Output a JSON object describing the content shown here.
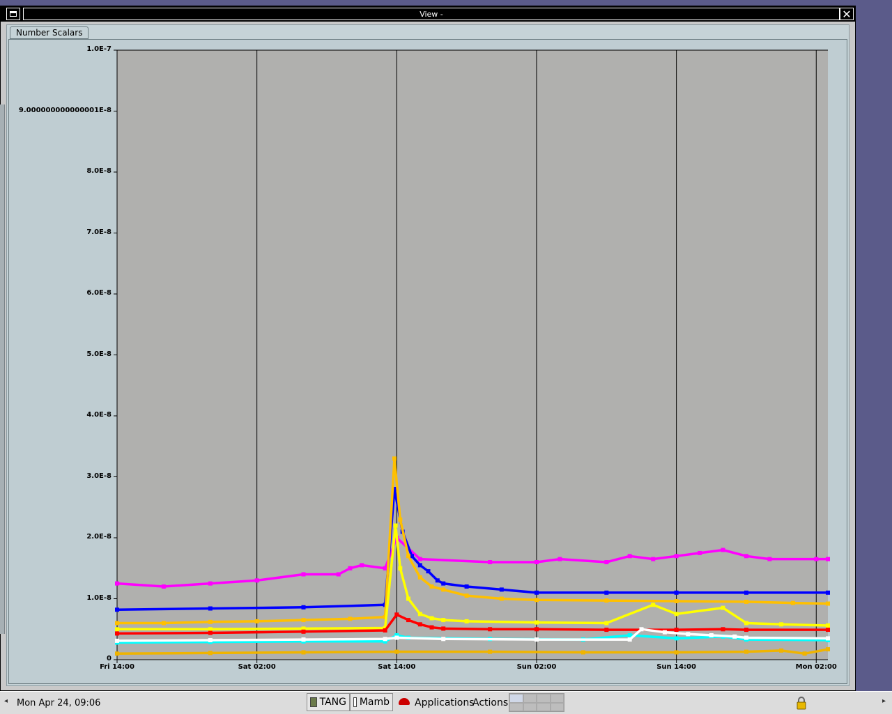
{
  "window": {
    "title": "View -",
    "tab_label": "Number Scalars"
  },
  "chart_data": {
    "type": "line",
    "ylim": [
      0,
      1e-07
    ],
    "yticks": [
      "1.0E-7",
      "9.000000000000001E-8",
      "8.0E-8",
      "7.0E-8",
      "6.0E-8",
      "5.0E-8",
      "4.0E-8",
      "3.0E-8",
      "2.0E-8",
      "1.0E-8",
      "0"
    ],
    "ytick_values": [
      1e-07,
      9e-08,
      8e-08,
      7e-08,
      6e-08,
      5e-08,
      4e-08,
      3e-08,
      2e-08,
      1e-08,
      0
    ],
    "xlim": [
      8.0,
      69.0
    ],
    "x_unit": "hours since Fri 06:00",
    "xticks": [
      "Fri 14:00",
      "Sat 02:00",
      "Sat 14:00",
      "Sun 02:00",
      "Sun 14:00",
      "Mon 02:00"
    ],
    "xtick_values": [
      8,
      20,
      32,
      44,
      56,
      68
    ],
    "grid": true,
    "series": [
      {
        "color": "#ff00ff",
        "x": [
          8,
          12,
          16,
          20,
          24,
          27,
          28,
          29,
          31,
          32,
          34,
          40,
          44,
          46,
          50,
          52,
          54,
          56,
          58,
          60,
          62,
          64,
          68,
          69
        ],
        "values": [
          1.25e-08,
          1.2e-08,
          1.25e-08,
          1.3e-08,
          1.4e-08,
          1.4e-08,
          1.5e-08,
          1.55e-08,
          1.5e-08,
          2e-08,
          1.65e-08,
          1.6e-08,
          1.6e-08,
          1.65e-08,
          1.6e-08,
          1.7e-08,
          1.65e-08,
          1.7e-08,
          1.75e-08,
          1.8e-08,
          1.7e-08,
          1.65e-08,
          1.65e-08,
          1.65e-08
        ]
      },
      {
        "color": "#0000ff",
        "x": [
          8,
          16,
          24,
          31,
          31.8,
          32.5,
          33.3,
          34,
          34.7,
          35.5,
          36,
          38,
          41,
          44,
          50,
          56,
          62,
          69
        ],
        "values": [
          8.2e-09,
          8.4e-09,
          8.6e-09,
          9e-09,
          2.8e-08,
          2.1e-08,
          1.7e-08,
          1.55e-08,
          1.45e-08,
          1.3e-08,
          1.25e-08,
          1.2e-08,
          1.15e-08,
          1.1e-08,
          1.1e-08,
          1.1e-08,
          1.1e-08,
          1.1e-08
        ]
      },
      {
        "color": "#ffc000",
        "x": [
          8,
          12,
          16,
          20,
          24,
          28,
          31,
          31.8,
          32.3,
          33,
          34,
          35,
          36,
          38,
          41,
          44,
          50,
          56,
          62,
          66,
          69
        ],
        "values": [
          6e-09,
          6e-09,
          6.2e-09,
          6.3e-09,
          6.5e-09,
          6.7e-09,
          7e-09,
          3.3e-08,
          2.3e-08,
          1.7e-08,
          1.35e-08,
          1.2e-08,
          1.15e-08,
          1.05e-08,
          1e-08,
          9.8e-09,
          9.7e-09,
          9.6e-09,
          9.5e-09,
          9.3e-09,
          9.2e-09
        ]
      },
      {
        "color": "#ffff00",
        "x": [
          8,
          16,
          24,
          31,
          31.9,
          32.3,
          33,
          34,
          35,
          36,
          38,
          44,
          50,
          54,
          56,
          60,
          62,
          65,
          69
        ],
        "values": [
          5e-09,
          5e-09,
          5.1e-09,
          5.2e-09,
          2.2e-08,
          1.5e-08,
          1e-08,
          7.5e-09,
          6.8e-09,
          6.5e-09,
          6.3e-09,
          6.1e-09,
          6e-09,
          9e-09,
          7.5e-09,
          8.5e-09,
          6e-09,
          5.8e-09,
          5.6e-09
        ]
      },
      {
        "color": "#ff0000",
        "x": [
          8,
          16,
          24,
          31,
          32,
          33,
          34,
          35,
          36,
          40,
          44,
          50,
          56,
          60,
          62,
          69
        ],
        "values": [
          4.3e-09,
          4.4e-09,
          4.6e-09,
          4.8e-09,
          7.4e-09,
          6.5e-09,
          5.8e-09,
          5.3e-09,
          5.1e-09,
          5e-09,
          5e-09,
          4.9e-09,
          4.9e-09,
          5e-09,
          4.9e-09,
          4.9e-09
        ]
      },
      {
        "color": "#00ffff",
        "x": [
          8,
          16,
          24,
          31,
          32,
          33,
          40,
          48,
          52,
          56,
          60,
          62,
          69
        ],
        "values": [
          2.8e-09,
          2.9e-09,
          3e-09,
          3e-09,
          4e-09,
          3.6e-09,
          3.4e-09,
          3.3e-09,
          4e-09,
          3.5e-09,
          3.8e-09,
          3.3e-09,
          3.2e-09
        ]
      },
      {
        "color": "#ffffff",
        "x": [
          8,
          16,
          24,
          31,
          32,
          36,
          44,
          52,
          53,
          55,
          57,
          59,
          61,
          62,
          69
        ],
        "values": [
          3.1e-09,
          3.2e-09,
          3.3e-09,
          3.4e-09,
          3.6e-09,
          3.4e-09,
          3.3e-09,
          3.3e-09,
          5e-09,
          4.5e-09,
          4.2e-09,
          4e-09,
          3.8e-09,
          3.6e-09,
          3.5e-09
        ]
      },
      {
        "color": "#f0b400",
        "x": [
          8,
          16,
          24,
          32,
          40,
          48,
          56,
          62,
          65,
          67,
          69
        ],
        "values": [
          1e-09,
          1.1e-09,
          1.2e-09,
          1.3e-09,
          1.3e-09,
          1.2e-09,
          1.2e-09,
          1.3e-09,
          1.5e-09,
          1e-09,
          1.7e-09
        ]
      }
    ]
  },
  "taskbar": {
    "clock": "Mon Apr 24, 09:06",
    "task1_label": "TANG",
    "task2_label": "Mamb",
    "applications_label": "Applications",
    "actions_label": "Actions",
    "left_arrow": "◂",
    "right_arrow": "▸"
  }
}
